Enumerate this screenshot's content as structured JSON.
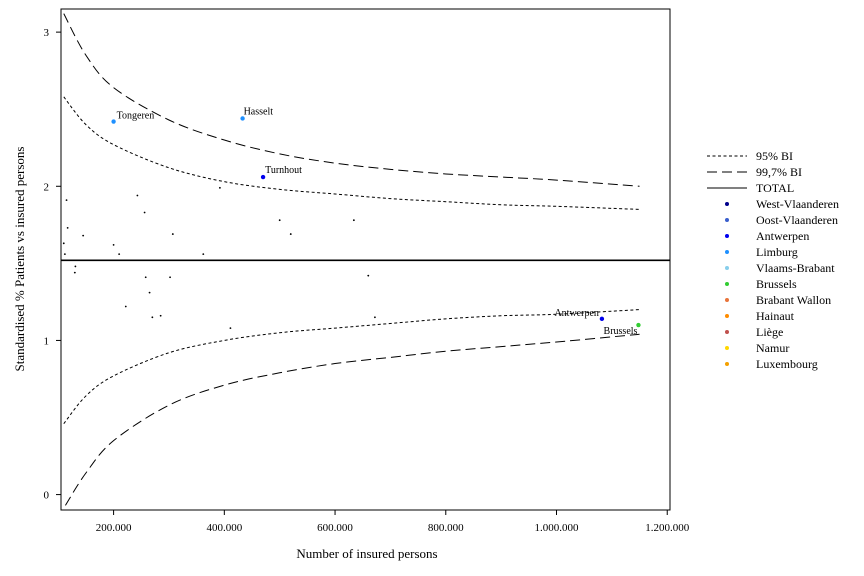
{
  "chart_data": {
    "type": "scatter",
    "xlabel": "Number of insured persons",
    "ylabel": "Standardised % Patients vs insured persons",
    "xlim": [
      105000,
      1205000
    ],
    "ylim": [
      -0.1,
      3.15
    ],
    "xticks": [
      {
        "value": 200000,
        "label": "200.000"
      },
      {
        "value": 400000,
        "label": "400.000"
      },
      {
        "value": 600000,
        "label": "600.000"
      },
      {
        "value": 800000,
        "label": "800.000"
      },
      {
        "value": 1000000,
        "label": "1.000.000"
      },
      {
        "value": 1200000,
        "label": "1.200.000"
      }
    ],
    "yticks": [
      {
        "value": 0,
        "label": "0"
      },
      {
        "value": 1,
        "label": "1"
      },
      {
        "value": 2,
        "label": "2"
      },
      {
        "value": 3,
        "label": "3"
      }
    ],
    "grid": false,
    "legend_position": "right",
    "total": 1.52,
    "limits": {
      "ci95": {
        "name": "95% BI",
        "upper": [
          [
            110000,
            2.58
          ],
          [
            150000,
            2.4
          ],
          [
            200000,
            2.27
          ],
          [
            300000,
            2.12
          ],
          [
            400000,
            2.03
          ],
          [
            500000,
            1.98
          ],
          [
            600000,
            1.95
          ],
          [
            700000,
            1.92
          ],
          [
            800000,
            1.9
          ],
          [
            900000,
            1.88
          ],
          [
            1000000,
            1.87
          ],
          [
            1150000,
            1.85
          ]
        ],
        "lower": [
          [
            110000,
            0.46
          ],
          [
            150000,
            0.64
          ],
          [
            200000,
            0.77
          ],
          [
            300000,
            0.92
          ],
          [
            400000,
            1.0
          ],
          [
            500000,
            1.05
          ],
          [
            600000,
            1.08
          ],
          [
            700000,
            1.11
          ],
          [
            800000,
            1.14
          ],
          [
            900000,
            1.16
          ],
          [
            1000000,
            1.17
          ],
          [
            1150000,
            1.2
          ]
        ]
      },
      "ci997": {
        "name": "99,7% BI",
        "upper": [
          [
            110000,
            3.12
          ],
          [
            150000,
            2.85
          ],
          [
            200000,
            2.64
          ],
          [
            300000,
            2.43
          ],
          [
            400000,
            2.3
          ],
          [
            500000,
            2.21
          ],
          [
            600000,
            2.15
          ],
          [
            700000,
            2.11
          ],
          [
            800000,
            2.08
          ],
          [
            900000,
            2.06
          ],
          [
            1000000,
            2.04
          ],
          [
            1150000,
            2.0
          ]
        ],
        "lower": [
          [
            113000,
            -0.07
          ],
          [
            150000,
            0.14
          ],
          [
            200000,
            0.35
          ],
          [
            300000,
            0.58
          ],
          [
            400000,
            0.71
          ],
          [
            500000,
            0.79
          ],
          [
            600000,
            0.85
          ],
          [
            700000,
            0.89
          ],
          [
            800000,
            0.93
          ],
          [
            900000,
            0.96
          ],
          [
            1000000,
            0.99
          ],
          [
            1150000,
            1.04
          ]
        ]
      }
    },
    "series": [
      {
        "name": "West-Vlaanderen",
        "color": "#00008b",
        "points": []
      },
      {
        "name": "Oost-Vlaanderen",
        "color": "#3a5fcd",
        "points": []
      },
      {
        "name": "Antwerpen",
        "color": "#0000ee",
        "points": [
          {
            "x": 470000,
            "y": 2.06,
            "label": "Turnhout"
          },
          {
            "x": 1082000,
            "y": 1.14,
            "label": "Antwerpen"
          }
        ]
      },
      {
        "name": "Limburg",
        "color": "#1e90ff",
        "points": [
          {
            "x": 200000,
            "y": 2.42,
            "label": "Tongeren"
          },
          {
            "x": 433000,
            "y": 2.44,
            "label": "Hasselt"
          }
        ]
      },
      {
        "name": "Vlaams-Brabant",
        "color": "#87ceeb",
        "points": []
      },
      {
        "name": "Brussels",
        "color": "#32cd32",
        "points": [
          {
            "x": 1148000,
            "y": 1.1,
            "label": "Brussels"
          }
        ]
      },
      {
        "name": "Brabant Wallon",
        "color": "#e8743b",
        "points": []
      },
      {
        "name": "Hainaut",
        "color": "#ff8c00",
        "points": []
      },
      {
        "name": "Liège",
        "color": "#c0504d",
        "points": []
      },
      {
        "name": "Namur",
        "color": "#ffd700",
        "points": []
      },
      {
        "name": "Luxembourg",
        "color": "#f4a000",
        "points": []
      }
    ],
    "unlabeled_points": [
      {
        "x": 110000,
        "y": 1.63
      },
      {
        "x": 112000,
        "y": 1.56
      },
      {
        "x": 115000,
        "y": 1.91
      },
      {
        "x": 117000,
        "y": 1.73
      },
      {
        "x": 130000,
        "y": 1.44
      },
      {
        "x": 131000,
        "y": 1.48
      },
      {
        "x": 145000,
        "y": 1.68
      },
      {
        "x": 200000,
        "y": 1.62
      },
      {
        "x": 210000,
        "y": 1.56
      },
      {
        "x": 222000,
        "y": 1.22
      },
      {
        "x": 243000,
        "y": 1.94
      },
      {
        "x": 256000,
        "y": 1.83
      },
      {
        "x": 258000,
        "y": 1.41
      },
      {
        "x": 265000,
        "y": 1.31
      },
      {
        "x": 270000,
        "y": 1.15
      },
      {
        "x": 285000,
        "y": 1.16
      },
      {
        "x": 302000,
        "y": 1.41
      },
      {
        "x": 307000,
        "y": 1.69
      },
      {
        "x": 362000,
        "y": 1.56
      },
      {
        "x": 392000,
        "y": 1.99
      },
      {
        "x": 411000,
        "y": 1.08
      },
      {
        "x": 500000,
        "y": 1.78
      },
      {
        "x": 520000,
        "y": 1.69
      },
      {
        "x": 634000,
        "y": 1.78
      },
      {
        "x": 660000,
        "y": 1.42
      },
      {
        "x": 672000,
        "y": 1.15
      }
    ],
    "legend": [
      "95% BI",
      "99,7% BI",
      "TOTAL"
    ]
  }
}
